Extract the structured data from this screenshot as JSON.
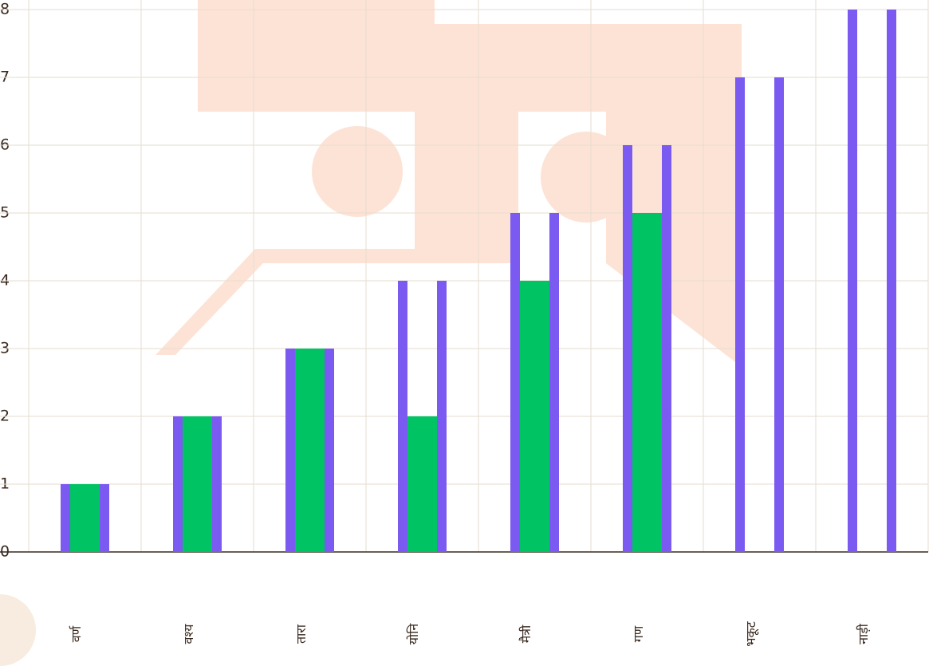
{
  "chart_data": {
    "type": "bar",
    "categories": [
      "वर्ण",
      "वश्य",
      "तारा",
      "योनि",
      "मैत्री",
      "गण",
      "भकूट",
      "नाड़ी"
    ],
    "series": [
      {
        "color": "#7a5af0",
        "values": [
          1,
          2,
          3,
          4,
          5,
          6,
          7,
          8
        ]
      },
      {
        "color": "#00c464",
        "values": [
          1,
          2,
          3,
          2,
          4,
          5,
          0,
          0
        ]
      }
    ],
    "ylim": [
      0,
      8
    ],
    "yticks": [
      0,
      1,
      2,
      3,
      4,
      5,
      6,
      7,
      8
    ],
    "grid": true
  }
}
